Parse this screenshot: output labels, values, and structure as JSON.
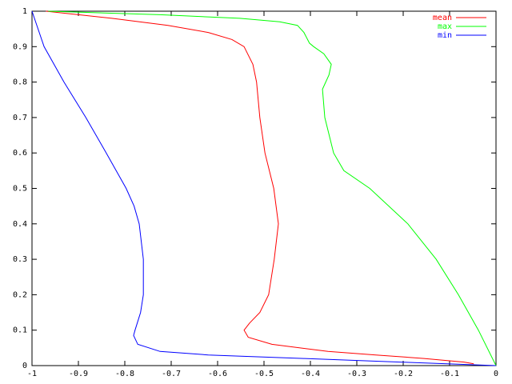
{
  "chart_data": {
    "type": "line",
    "xlim": [
      -1,
      0
    ],
    "ylim": [
      0,
      1
    ],
    "xticks": [
      -1,
      -0.9,
      -0.8,
      -0.7,
      -0.6,
      -0.5,
      -0.4,
      -0.3,
      -0.2,
      -0.1,
      0
    ],
    "yticks": [
      0,
      0.1,
      0.2,
      0.3,
      0.4,
      0.5,
      0.6,
      0.7,
      0.8,
      0.9,
      1
    ],
    "grid": false,
    "legend": "top-right",
    "series": [
      {
        "name": "mean",
        "color": "#ff0000",
        "x": [
          -0.97,
          -0.828,
          -0.707,
          -0.62,
          -0.569,
          -0.543,
          -0.524,
          -0.516,
          -0.509,
          -0.498,
          -0.479,
          -0.469,
          -0.478,
          -0.49,
          -0.509,
          -0.531,
          -0.543,
          -0.534,
          -0.483,
          -0.362,
          -0.259,
          -0.155,
          -0.069,
          -0.048
        ],
        "values": [
          1,
          0.98,
          0.96,
          0.94,
          0.92,
          0.9,
          0.85,
          0.8,
          0.7,
          0.6,
          0.5,
          0.4,
          0.3,
          0.2,
          0.15,
          0.12,
          0.1,
          0.08,
          0.06,
          0.04,
          0.03,
          0.02,
          0.01,
          0.005
        ]
      },
      {
        "name": "max",
        "color": "#00ff00",
        "x": [
          -0.965,
          -0.724,
          -0.552,
          -0.466,
          -0.428,
          -0.414,
          -0.402,
          -0.393,
          -0.371,
          -0.355,
          -0.36,
          -0.374,
          -0.369,
          -0.35,
          -0.328,
          -0.272,
          -0.19,
          -0.129,
          -0.081,
          -0.038,
          0
        ],
        "values": [
          1,
          0.99,
          0.98,
          0.97,
          0.96,
          0.94,
          0.91,
          0.9,
          0.88,
          0.85,
          0.82,
          0.78,
          0.7,
          0.6,
          0.55,
          0.5,
          0.4,
          0.3,
          0.2,
          0.1,
          0
        ]
      },
      {
        "name": "min",
        "color": "#0000ff",
        "x": [
          -1,
          -0.974,
          -0.931,
          -0.884,
          -0.84,
          -0.797,
          -0.78,
          -0.769,
          -0.76,
          -0.76,
          -0.766,
          -0.778,
          -0.781,
          -0.772,
          -0.724,
          -0.62,
          -0.414,
          -0.207,
          0
        ],
        "values": [
          1,
          0.9,
          0.8,
          0.7,
          0.6,
          0.5,
          0.45,
          0.4,
          0.3,
          0.2,
          0.15,
          0.1,
          0.085,
          0.06,
          0.04,
          0.03,
          0.02,
          0.01,
          0
        ]
      }
    ]
  }
}
